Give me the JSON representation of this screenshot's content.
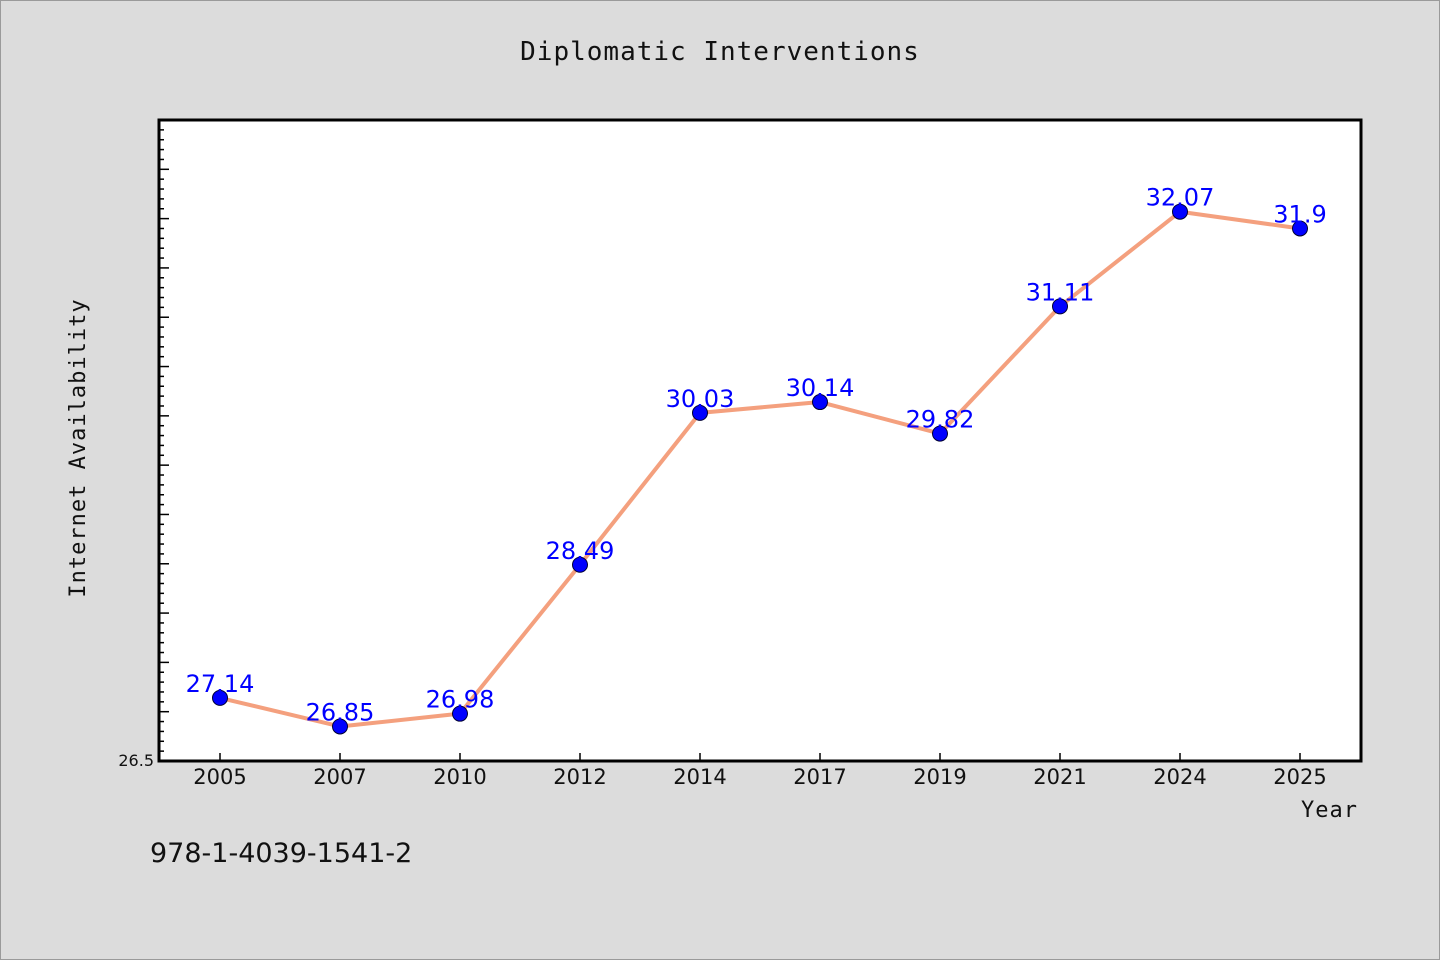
{
  "chart_data": {
    "type": "line",
    "title": "Diplomatic Interventions",
    "xlabel": "Year",
    "ylabel": "Internet Availability",
    "categories": [
      "2005",
      "2007",
      "2010",
      "2012",
      "2014",
      "2017",
      "2019",
      "2021",
      "2024",
      "2025"
    ],
    "values": [
      27.14,
      26.85,
      26.98,
      28.49,
      30.03,
      30.14,
      29.82,
      31.11,
      32.07,
      31.9
    ],
    "data_labels": [
      "27.14",
      "26.85",
      "26.98",
      "28.49",
      "30.03",
      "30.14",
      "29.82",
      "31.11",
      "32.07",
      "31.9"
    ],
    "ylim": [
      26.5,
      33.0
    ],
    "yticks_labeled": [
      "26.5"
    ],
    "grid": false,
    "legend": "none",
    "colors": {
      "line": "#f4a07e",
      "marker": "#0000ff",
      "label": "#0000ff",
      "background": "#dcdcdc",
      "plot_area": "#ffffff"
    }
  },
  "footer": {
    "isbn": "978-1-4039-1541-2"
  }
}
